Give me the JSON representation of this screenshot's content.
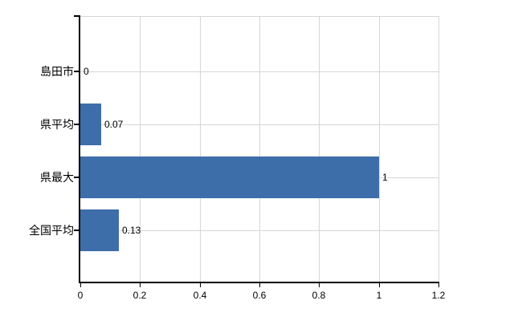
{
  "chart_data": {
    "type": "bar",
    "orientation": "horizontal",
    "title": "",
    "xlabel": "",
    "ylabel": "",
    "categories": [
      "島田市",
      "県平均",
      "県最大",
      "全国平均"
    ],
    "values": [
      0,
      0.07,
      1,
      0.13
    ],
    "value_labels": [
      "0",
      "0.07",
      "1",
      "0.13"
    ],
    "xlim": [
      0,
      1.2
    ],
    "xticks": [
      0,
      0.2,
      0.4,
      0.6,
      0.8,
      1,
      1.2
    ],
    "xtick_labels": [
      "0",
      "0.2",
      "0.4",
      "0.6",
      "0.8",
      "1",
      "1.2"
    ],
    "grid": true,
    "legend": false
  },
  "style": {
    "bar_color": "#3d6ea9",
    "grid_color": "#d6d6d6",
    "axis_color": "#000000",
    "text_color": "#000000",
    "background": "#ffffff"
  }
}
